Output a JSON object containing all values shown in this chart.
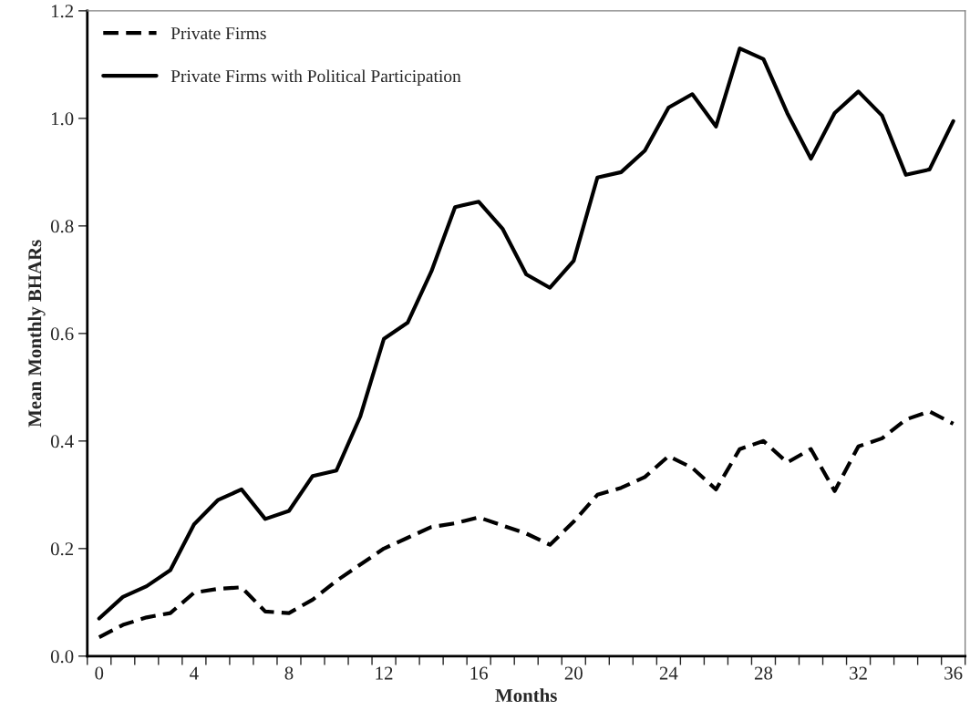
{
  "chart_data": {
    "type": "line",
    "xlabel": "Months",
    "ylabel": "Mean Monthly BHARs",
    "x": [
      0,
      1,
      2,
      3,
      4,
      5,
      6,
      7,
      8,
      9,
      10,
      11,
      12,
      13,
      14,
      15,
      16,
      17,
      18,
      19,
      20,
      21,
      22,
      23,
      24,
      25,
      26,
      27,
      28,
      29,
      30,
      31,
      32,
      33,
      34,
      35,
      36
    ],
    "series": [
      {
        "name": "Private Firms",
        "color": "#000000",
        "line_style": "dashed",
        "values": [
          0.035,
          0.058,
          0.072,
          0.08,
          0.118,
          0.125,
          0.128,
          0.083,
          0.08,
          0.105,
          0.14,
          0.17,
          0.2,
          0.22,
          0.24,
          0.247,
          0.258,
          0.243,
          0.228,
          0.207,
          0.25,
          0.3,
          0.313,
          0.333,
          0.372,
          0.35,
          0.31,
          0.385,
          0.4,
          0.36,
          0.385,
          0.307,
          0.39,
          0.405,
          0.44,
          0.455,
          0.432
        ]
      },
      {
        "name": "Private Firms with Political Participation",
        "color": "#000000",
        "line_style": "solid",
        "values": [
          0.07,
          0.11,
          0.13,
          0.16,
          0.245,
          0.29,
          0.31,
          0.255,
          0.27,
          0.335,
          0.345,
          0.445,
          0.59,
          0.62,
          0.715,
          0.835,
          0.845,
          0.795,
          0.71,
          0.685,
          0.735,
          0.89,
          0.9,
          0.94,
          1.02,
          1.045,
          0.985,
          1.13,
          1.11,
          1.01,
          0.925,
          1.01,
          1.05,
          1.005,
          0.895,
          0.905,
          0.995
        ]
      }
    ],
    "xlim": [
      -0.5,
      36.5
    ],
    "xticks": [
      0,
      4,
      8,
      12,
      16,
      20,
      24,
      28,
      32,
      36,
      {
        "value": -0.5,
        "label": null
      },
      {
        "value": 0.5,
        "label": null
      },
      {
        "value": 1.5,
        "label": null
      },
      {
        "value": 2.5,
        "label": null
      },
      {
        "value": 3.5,
        "label": null
      },
      {
        "value": 4.5,
        "label": null
      },
      {
        "value": 5.5,
        "label": null
      },
      {
        "value": 6.5,
        "label": null
      },
      {
        "value": 7.5,
        "label": null
      },
      {
        "value": 8.5,
        "label": null
      },
      {
        "value": 9.5,
        "label": null
      },
      {
        "value": 10.5,
        "label": null
      },
      {
        "value": 11.5,
        "label": null
      },
      {
        "value": 12.5,
        "label": null
      },
      {
        "value": 13.5,
        "label": null
      },
      {
        "value": 14.5,
        "label": null
      },
      {
        "value": 15.5,
        "label": null
      },
      {
        "value": 16.5,
        "label": null
      },
      {
        "value": 17.5,
        "label": null
      },
      {
        "value": 18.5,
        "label": null
      },
      {
        "value": 19.5,
        "label": null
      },
      {
        "value": 20.5,
        "label": null
      },
      {
        "value": 21.5,
        "label": null
      },
      {
        "value": 22.5,
        "label": null
      },
      {
        "value": 23.5,
        "label": null
      },
      {
        "value": 24.5,
        "label": null
      },
      {
        "value": 25.5,
        "label": null
      },
      {
        "value": 26.5,
        "label": null
      },
      {
        "value": 27.5,
        "label": null
      },
      {
        "value": 28.5,
        "label": null
      },
      {
        "value": 29.5,
        "label": null
      },
      {
        "value": 30.5,
        "label": null
      },
      {
        "value": 31.5,
        "label": null
      },
      {
        "value": 32.5,
        "label": null
      },
      {
        "value": 33.5,
        "label": null
      },
      {
        "value": 34.5,
        "label": null
      },
      {
        "value": 35.5,
        "label": null
      },
      {
        "value": 36.5,
        "label": null
      }
    ],
    "ylim": [
      0,
      1.2
    ],
    "yticks": [
      {
        "value": 0,
        "label": "0.0"
      },
      {
        "value": 0.2,
        "label": "0.2"
      },
      {
        "value": 0.4,
        "label": "0.4"
      },
      {
        "value": 0.6,
        "label": "0.6"
      },
      {
        "value": 0.8,
        "label": "0.8"
      },
      {
        "value": 1.0,
        "label": "1.0"
      },
      {
        "value": 1.2,
        "label": "1.2"
      }
    ],
    "grid": false,
    "legend": "top left"
  }
}
